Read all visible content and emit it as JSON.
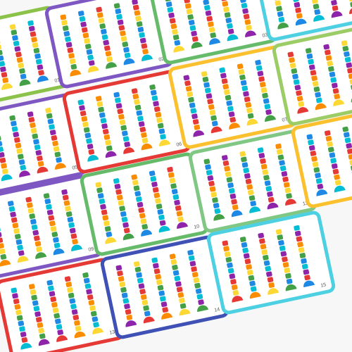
{
  "cards": [
    {
      "label": "01"
    },
    {
      "label": "02"
    },
    {
      "label": "03"
    },
    {
      "label": "05"
    },
    {
      "label": "06"
    },
    {
      "label": "07"
    },
    {
      "label": "09"
    },
    {
      "label": "10"
    },
    {
      "label": "11"
    },
    {
      "label": "13"
    },
    {
      "label": "14"
    },
    {
      "label": "15"
    }
  ]
}
